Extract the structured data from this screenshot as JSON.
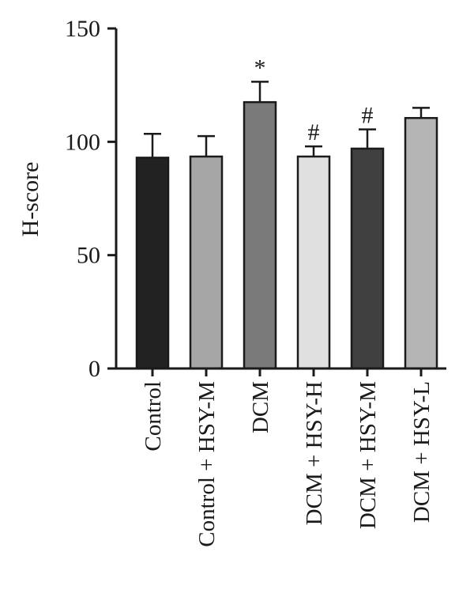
{
  "chart_data": {
    "type": "bar",
    "title": "",
    "xlabel": "",
    "ylabel": "H-score",
    "ylim": [
      0,
      150
    ],
    "yticks": [
      0,
      50,
      100,
      150
    ],
    "categories": [
      "Control",
      "Control + HSY-M",
      "DCM",
      "DCM + HSY-H",
      "DCM + HSY-M",
      "DCM + HSY-L"
    ],
    "values": [
      93,
      93.5,
      117.5,
      93.5,
      97,
      110.5
    ],
    "errors": [
      10.5,
      9,
      9,
      4.5,
      8.5,
      4.5
    ],
    "annotations": [
      "",
      "",
      "*",
      "#",
      "#",
      ""
    ],
    "colors": [
      "#222222",
      "#a6a6a6",
      "#7a7a7a",
      "#e0e0e0",
      "#404040",
      "#b5b5b5"
    ],
    "grid": false,
    "legend": "none"
  }
}
